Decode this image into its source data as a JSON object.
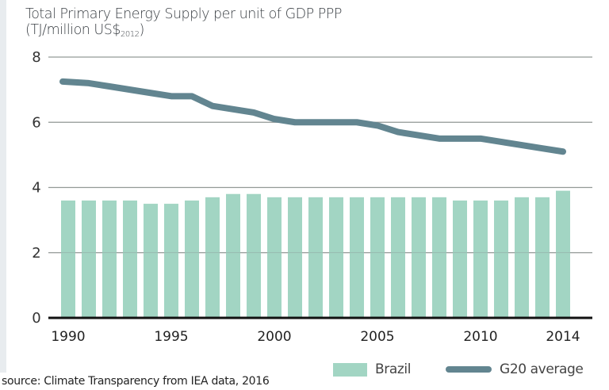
{
  "chart_data": {
    "type": "bar+line",
    "title": "Total Primary Energy Supply per unit of GDP PPP",
    "unit_prefix": "(TJ/million US$",
    "unit_sub": "2012",
    "unit_suffix": ")",
    "xlabel": "",
    "ylabel": "",
    "ylim": [
      0,
      8
    ],
    "yticks": [
      "0",
      "2",
      "4",
      "6",
      "8"
    ],
    "x": [
      1990,
      1991,
      1992,
      1993,
      1994,
      1995,
      1996,
      1997,
      1998,
      1999,
      2000,
      2001,
      2002,
      2003,
      2004,
      2005,
      2006,
      2007,
      2008,
      2009,
      2010,
      2011,
      2012,
      2013,
      2014
    ],
    "xtick_labels": [
      "1990",
      "1995",
      "2000",
      "2005",
      "2010",
      "2014"
    ],
    "grid": true,
    "series": [
      {
        "name": "Brazil",
        "type": "bar",
        "color": "#a2d5c3",
        "values": [
          3.6,
          3.6,
          3.6,
          3.6,
          3.5,
          3.5,
          3.6,
          3.7,
          3.8,
          3.8,
          3.7,
          3.7,
          3.7,
          3.7,
          3.7,
          3.7,
          3.7,
          3.7,
          3.7,
          3.6,
          3.6,
          3.6,
          3.7,
          3.7,
          3.9
        ]
      },
      {
        "name": "G20 average",
        "type": "line",
        "color": "#628590",
        "values": [
          7.25,
          7.2,
          7.1,
          7.0,
          6.9,
          6.8,
          6.8,
          6.5,
          6.4,
          6.3,
          6.1,
          6.0,
          6.0,
          6.0,
          6.0,
          5.9,
          5.7,
          5.6,
          5.5,
          5.5,
          5.5,
          5.4,
          5.3,
          5.2,
          5.1
        ]
      }
    ],
    "legend": [
      "Brazil",
      "G20 average"
    ],
    "legend_position": "bottom-right"
  },
  "source": "source: Climate Transparency from IEA data, 2016"
}
